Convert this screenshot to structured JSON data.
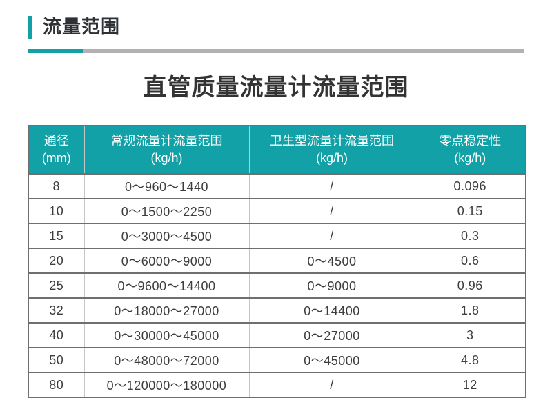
{
  "section": {
    "title": "流量范围"
  },
  "page": {
    "title": "直管质量流量计流量范围"
  },
  "colors": {
    "accent": "#12a1a7",
    "divider_gray": "#b2b2b2",
    "header_bg": "#12a1a7",
    "header_text": "#ffffff",
    "body_text": "#3d3d3d",
    "border_dark": "#6f6f6f",
    "border_light": "#c6c6c6"
  },
  "table": {
    "columns": [
      {
        "label": "通径",
        "unit": "(mm)"
      },
      {
        "label": "常规流量计流量范围",
        "unit": "(kg/h)"
      },
      {
        "label": "卫生型流量计流量范围",
        "unit": "(kg/h)"
      },
      {
        "label": "零点稳定性",
        "unit": "(kg/h)"
      }
    ],
    "rows": [
      [
        "8",
        "0～960～1440",
        "/",
        "0.096"
      ],
      [
        "10",
        "0～1500～2250",
        "/",
        "0.15"
      ],
      [
        "15",
        "0～3000～4500",
        "/",
        "0.3"
      ],
      [
        "20",
        "0～6000～9000",
        "0～4500",
        "0.6"
      ],
      [
        "25",
        "0～9600～14400",
        "0～9000",
        "0.96"
      ],
      [
        "32",
        "0～18000～27000",
        "0～14400",
        "1.8"
      ],
      [
        "40",
        "0～30000～45000",
        "0～27000",
        "3"
      ],
      [
        "50",
        "0～48000～72000",
        "0～45000",
        "4.8"
      ],
      [
        "80",
        "0～120000～180000",
        "/",
        "12"
      ]
    ]
  }
}
